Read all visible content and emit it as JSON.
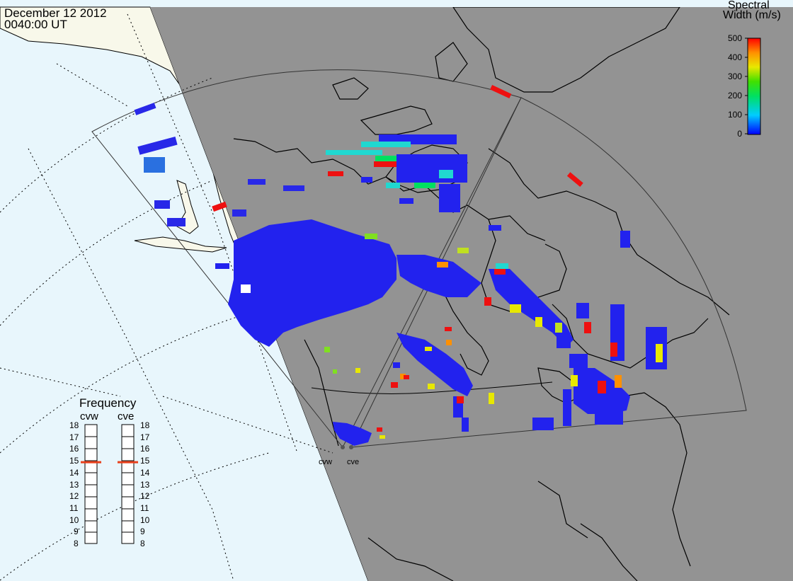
{
  "header": {
    "date": "December 12 2012",
    "time": "0040:00 UT"
  },
  "colorbar": {
    "title_line1": "Spectral",
    "title_line2": "Width (m/s)",
    "ticks": [
      "500",
      "400",
      "300",
      "200",
      "100",
      "0"
    ],
    "range": [
      0,
      500
    ]
  },
  "frequency_panel": {
    "title": "Frequency",
    "radars": [
      {
        "name": "cvw",
        "frequency": 15
      },
      {
        "name": "cve",
        "frequency": 15
      }
    ],
    "ticks": [
      "18",
      "17",
      "16",
      "15",
      "14",
      "13",
      "12",
      "11",
      "10",
      "9",
      "8"
    ]
  },
  "radar_sites": [
    "cvw",
    "cve"
  ],
  "colors": {
    "day_ocean": "#e8f6fc",
    "day_land": "#f8f8ea",
    "night": "#939393",
    "coastline": "#000000",
    "frequency_marker": "#e8401c"
  }
}
